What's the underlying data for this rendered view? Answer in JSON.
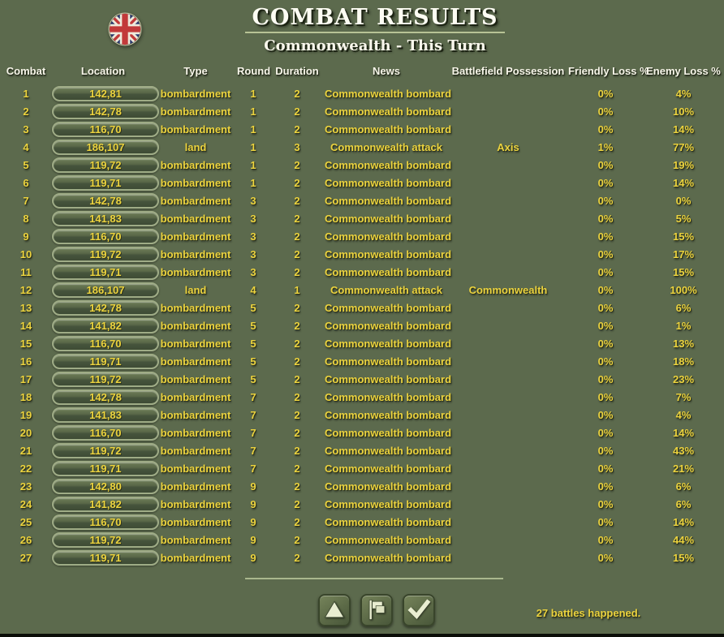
{
  "header": {
    "title": "COMBAT RESULTS",
    "subtitle": "Commonwealth - This Turn",
    "flag_icon": "uk-union-jack-roundel"
  },
  "colors": {
    "background": "#5c6a4d",
    "text_yellow": "#ecd33e",
    "text_white": "#f8f6ea",
    "pill_border": "#9fac86",
    "separator_line": "#b7c395",
    "flag_navy": "#2c3b6e",
    "flag_red": "#c23a3a"
  },
  "table": {
    "columns": [
      "Combat",
      "Location",
      "Type",
      "Round",
      "Duration",
      "News",
      "Battlefield Possession",
      "Friendly Loss %",
      "Enemy Loss %"
    ],
    "rows": [
      {
        "combat": "1",
        "location": "142,81",
        "type": "bombardment",
        "round": "1",
        "duration": "2",
        "news": "Commonwealth bombard",
        "possession": "",
        "friendly_loss": "0%",
        "enemy_loss": "4%"
      },
      {
        "combat": "2",
        "location": "142,78",
        "type": "bombardment",
        "round": "1",
        "duration": "2",
        "news": "Commonwealth bombard",
        "possession": "",
        "friendly_loss": "0%",
        "enemy_loss": "10%"
      },
      {
        "combat": "3",
        "location": "116,70",
        "type": "bombardment",
        "round": "1",
        "duration": "2",
        "news": "Commonwealth bombard",
        "possession": "",
        "friendly_loss": "0%",
        "enemy_loss": "14%"
      },
      {
        "combat": "4",
        "location": "186,107",
        "type": "land",
        "round": "1",
        "duration": "3",
        "news": "Commonwealth attack",
        "possession": "Axis",
        "friendly_loss": "1%",
        "enemy_loss": "77%"
      },
      {
        "combat": "5",
        "location": "119,72",
        "type": "bombardment",
        "round": "1",
        "duration": "2",
        "news": "Commonwealth bombard",
        "possession": "",
        "friendly_loss": "0%",
        "enemy_loss": "19%"
      },
      {
        "combat": "6",
        "location": "119,71",
        "type": "bombardment",
        "round": "1",
        "duration": "2",
        "news": "Commonwealth bombard",
        "possession": "",
        "friendly_loss": "0%",
        "enemy_loss": "14%"
      },
      {
        "combat": "7",
        "location": "142,78",
        "type": "bombardment",
        "round": "3",
        "duration": "2",
        "news": "Commonwealth bombard",
        "possession": "",
        "friendly_loss": "0%",
        "enemy_loss": "0%"
      },
      {
        "combat": "8",
        "location": "141,83",
        "type": "bombardment",
        "round": "3",
        "duration": "2",
        "news": "Commonwealth bombard",
        "possession": "",
        "friendly_loss": "0%",
        "enemy_loss": "5%"
      },
      {
        "combat": "9",
        "location": "116,70",
        "type": "bombardment",
        "round": "3",
        "duration": "2",
        "news": "Commonwealth bombard",
        "possession": "",
        "friendly_loss": "0%",
        "enemy_loss": "15%"
      },
      {
        "combat": "10",
        "location": "119,72",
        "type": "bombardment",
        "round": "3",
        "duration": "2",
        "news": "Commonwealth bombard",
        "possession": "",
        "friendly_loss": "0%",
        "enemy_loss": "17%"
      },
      {
        "combat": "11",
        "location": "119,71",
        "type": "bombardment",
        "round": "3",
        "duration": "2",
        "news": "Commonwealth bombard",
        "possession": "",
        "friendly_loss": "0%",
        "enemy_loss": "15%"
      },
      {
        "combat": "12",
        "location": "186,107",
        "type": "land",
        "round": "4",
        "duration": "1",
        "news": "Commonwealth attack",
        "possession": "Commonwealth",
        "friendly_loss": "0%",
        "enemy_loss": "100%"
      },
      {
        "combat": "13",
        "location": "142,78",
        "type": "bombardment",
        "round": "5",
        "duration": "2",
        "news": "Commonwealth bombard",
        "possession": "",
        "friendly_loss": "0%",
        "enemy_loss": "6%"
      },
      {
        "combat": "14",
        "location": "141,82",
        "type": "bombardment",
        "round": "5",
        "duration": "2",
        "news": "Commonwealth bombard",
        "possession": "",
        "friendly_loss": "0%",
        "enemy_loss": "1%"
      },
      {
        "combat": "15",
        "location": "116,70",
        "type": "bombardment",
        "round": "5",
        "duration": "2",
        "news": "Commonwealth bombard",
        "possession": "",
        "friendly_loss": "0%",
        "enemy_loss": "13%"
      },
      {
        "combat": "16",
        "location": "119,71",
        "type": "bombardment",
        "round": "5",
        "duration": "2",
        "news": "Commonwealth bombard",
        "possession": "",
        "friendly_loss": "0%",
        "enemy_loss": "18%"
      },
      {
        "combat": "17",
        "location": "119,72",
        "type": "bombardment",
        "round": "5",
        "duration": "2",
        "news": "Commonwealth bombard",
        "possession": "",
        "friendly_loss": "0%",
        "enemy_loss": "23%"
      },
      {
        "combat": "18",
        "location": "142,78",
        "type": "bombardment",
        "round": "7",
        "duration": "2",
        "news": "Commonwealth bombard",
        "possession": "",
        "friendly_loss": "0%",
        "enemy_loss": "7%"
      },
      {
        "combat": "19",
        "location": "141,83",
        "type": "bombardment",
        "round": "7",
        "duration": "2",
        "news": "Commonwealth bombard",
        "possession": "",
        "friendly_loss": "0%",
        "enemy_loss": "4%"
      },
      {
        "combat": "20",
        "location": "116,70",
        "type": "bombardment",
        "round": "7",
        "duration": "2",
        "news": "Commonwealth bombard",
        "possession": "",
        "friendly_loss": "0%",
        "enemy_loss": "14%"
      },
      {
        "combat": "21",
        "location": "119,72",
        "type": "bombardment",
        "round": "7",
        "duration": "2",
        "news": "Commonwealth bombard",
        "possession": "",
        "friendly_loss": "0%",
        "enemy_loss": "43%"
      },
      {
        "combat": "22",
        "location": "119,71",
        "type": "bombardment",
        "round": "7",
        "duration": "2",
        "news": "Commonwealth bombard",
        "possession": "",
        "friendly_loss": "0%",
        "enemy_loss": "21%"
      },
      {
        "combat": "23",
        "location": "142,80",
        "type": "bombardment",
        "round": "9",
        "duration": "2",
        "news": "Commonwealth bombard",
        "possession": "",
        "friendly_loss": "0%",
        "enemy_loss": "6%"
      },
      {
        "combat": "24",
        "location": "141,82",
        "type": "bombardment",
        "round": "9",
        "duration": "2",
        "news": "Commonwealth bombard",
        "possession": "",
        "friendly_loss": "0%",
        "enemy_loss": "6%"
      },
      {
        "combat": "25",
        "location": "116,70",
        "type": "bombardment",
        "round": "9",
        "duration": "2",
        "news": "Commonwealth bombard",
        "possession": "",
        "friendly_loss": "0%",
        "enemy_loss": "14%"
      },
      {
        "combat": "26",
        "location": "119,72",
        "type": "bombardment",
        "round": "9",
        "duration": "2",
        "news": "Commonwealth bombard",
        "possession": "",
        "friendly_loss": "0%",
        "enemy_loss": "44%"
      },
      {
        "combat": "27",
        "location": "119,71",
        "type": "bombardment",
        "round": "9",
        "duration": "2",
        "news": "Commonwealth bombard",
        "possession": "",
        "friendly_loss": "0%",
        "enemy_loss": "15%"
      }
    ]
  },
  "footer": {
    "buttons": [
      {
        "name": "scroll-up-button",
        "icon": "triangle-up-icon"
      },
      {
        "name": "flag-button",
        "icon": "flag-icon"
      },
      {
        "name": "confirm-button",
        "icon": "checkmark-icon"
      }
    ],
    "status_text": "27 battles happened."
  }
}
